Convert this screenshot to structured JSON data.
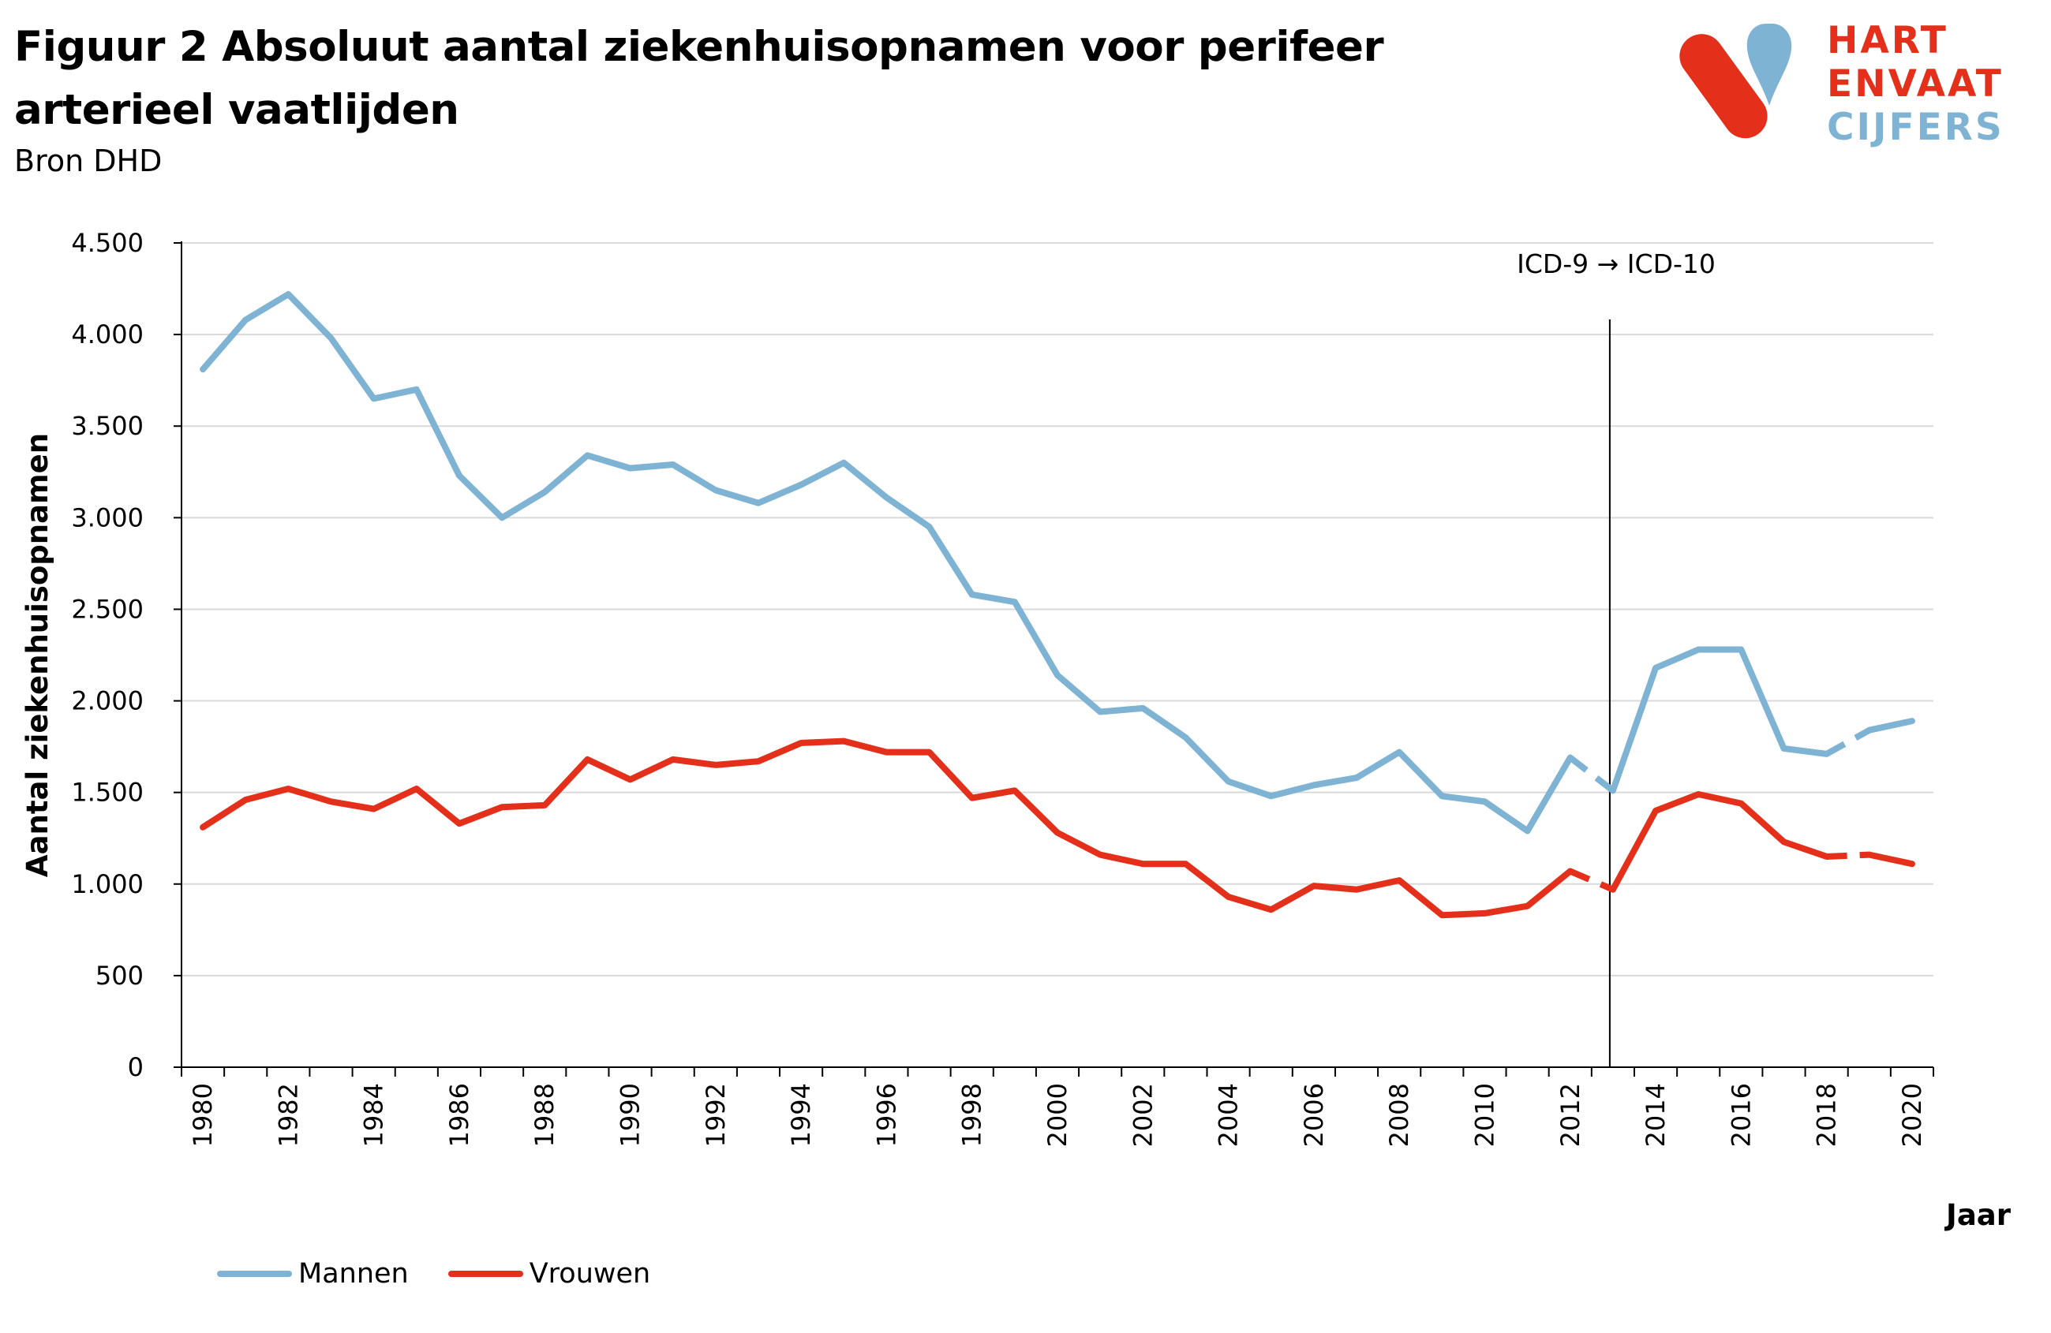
{
  "title": "Figuur 2 Absoluut aantal ziekenhuisopnamen voor perifeer arterieel vaatlijden",
  "subtitle": "Bron DHD",
  "logo": {
    "line1": "HART",
    "line2": "ENVAAT",
    "line3": "CIJFERS",
    "colors": {
      "red": "#E42F1A",
      "blue": "#7FB3D3"
    }
  },
  "annotation": "ICD-9 → ICD-10",
  "chart_data": {
    "type": "line",
    "xlabel": "Jaar",
    "ylabel": "Aantal ziekenhuisopnamen",
    "ylim": [
      0,
      4500
    ],
    "yticks": [
      0,
      500,
      1000,
      1500,
      2000,
      2500,
      3000,
      3500,
      4000,
      4500
    ],
    "ytick_labels": [
      "0",
      "500",
      "1.000",
      "1.500",
      "2.000",
      "2.500",
      "3.000",
      "3.500",
      "4.000",
      "4.500"
    ],
    "xlim": [
      1980,
      2020
    ],
    "xtick_labels": [
      "1980",
      "1982",
      "1984",
      "1986",
      "1988",
      "1990",
      "1992",
      "1994",
      "1996",
      "1998",
      "2000",
      "2002",
      "2004",
      "2006",
      "2008",
      "2010",
      "2012",
      "2014",
      "2016",
      "2018",
      "2020"
    ],
    "grid": "horizontal",
    "legend_position": "bottom-left",
    "vertical_marker_x": 2013,
    "x": [
      1980,
      1981,
      1982,
      1983,
      1984,
      1985,
      1986,
      1987,
      1988,
      1989,
      1990,
      1991,
      1992,
      1993,
      1994,
      1995,
      1996,
      1997,
      1998,
      1999,
      2000,
      2001,
      2002,
      2003,
      2004,
      2005,
      2006,
      2007,
      2008,
      2009,
      2010,
      2011,
      2012,
      2013,
      2014,
      2015,
      2016,
      2017,
      2018,
      2019,
      2020
    ],
    "dashed_segments": [
      [
        2012,
        2013
      ],
      [
        2018,
        2019
      ]
    ],
    "series": [
      {
        "name": "Mannen",
        "color": "#7FB3D3",
        "values": [
          3810,
          4080,
          4220,
          3980,
          3650,
          3700,
          3230,
          3000,
          3140,
          3340,
          3270,
          3290,
          3150,
          3080,
          3180,
          3300,
          3110,
          2950,
          2580,
          2540,
          2140,
          1940,
          1960,
          1800,
          1560,
          1480,
          1540,
          1580,
          1720,
          1480,
          1450,
          1290,
          1690,
          1510,
          2180,
          2280,
          2280,
          1740,
          1710,
          1840,
          1890
        ]
      },
      {
        "name": "Vrouwen",
        "color": "#E42F1A",
        "values": [
          1310,
          1460,
          1520,
          1450,
          1410,
          1520,
          1330,
          1420,
          1430,
          1680,
          1570,
          1680,
          1650,
          1670,
          1770,
          1780,
          1720,
          1720,
          1470,
          1510,
          1280,
          1160,
          1110,
          1110,
          930,
          860,
          990,
          970,
          1020,
          830,
          840,
          880,
          1070,
          970,
          1400,
          1490,
          1440,
          1230,
          1150,
          1160,
          1110
        ]
      }
    ]
  }
}
